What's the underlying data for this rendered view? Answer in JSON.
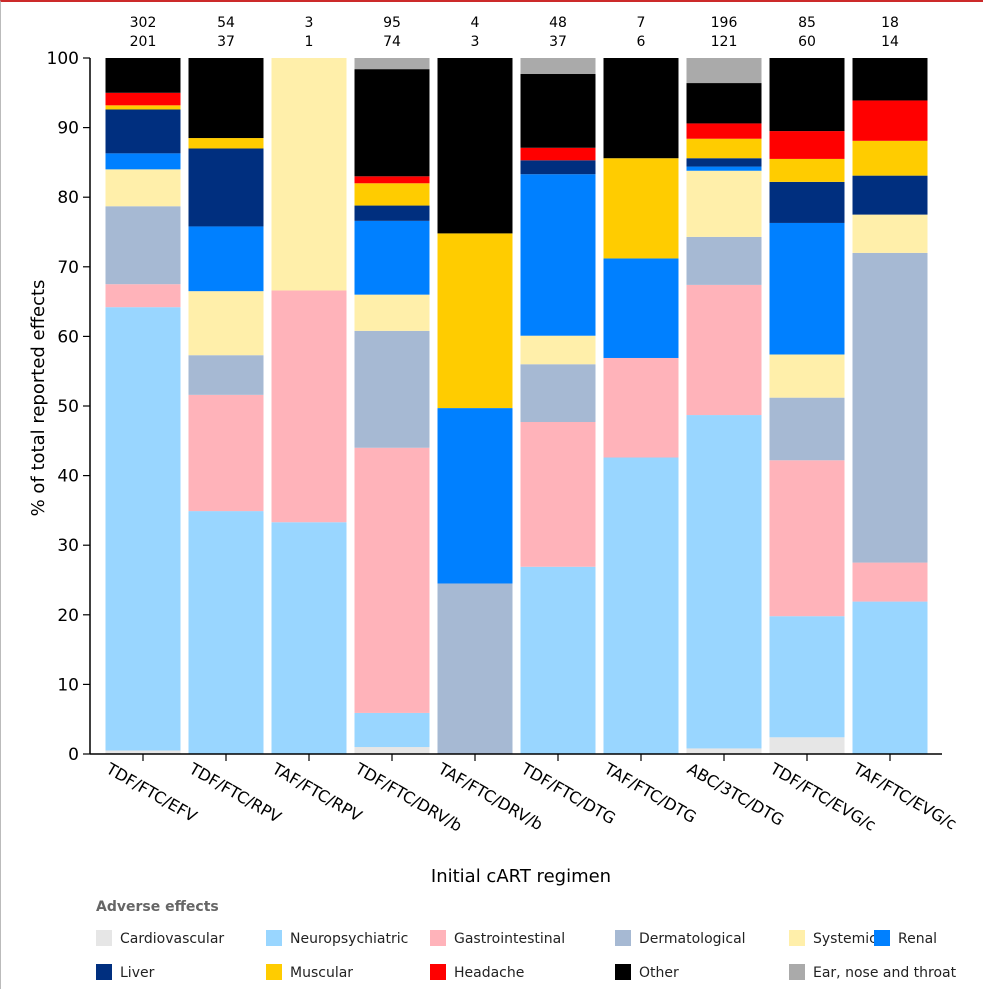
{
  "chart_data": {
    "type": "bar",
    "stacked": true,
    "xlabel": "Initial cART regimen",
    "ylabel": "% of total reported effects",
    "ylim": [
      0,
      100
    ],
    "yticks": [
      0,
      10,
      20,
      30,
      40,
      50,
      60,
      70,
      80,
      90,
      100
    ],
    "categories": [
      "TDF/FTC/EFV",
      "TDF/FTC/RPV",
      "TAF/FTC/RPV",
      "TDF/FTC/DRV/b",
      "TAF/FTC/DRV/b",
      "TDF/FTC/DTG",
      "TAF/FTC/DTG",
      "ABC/3TC/DTG",
      "TDF/FTC/EVG/c",
      "TAF/FTC/EVG/c"
    ],
    "counts_top": [
      "302",
      "54",
      "3",
      "95",
      "4",
      "48",
      "7",
      "196",
      "85",
      "18"
    ],
    "counts_bottom": [
      "201",
      "37",
      "1",
      "74",
      "3",
      "37",
      "6",
      "121",
      "60",
      "14"
    ],
    "legend_title": "Adverse effects",
    "legend_placement": "bottom",
    "grid": false,
    "series": [
      {
        "name": "Cardiovascular",
        "color": "#e6e6e6",
        "values": [
          0.5,
          0,
          0,
          1.0,
          0,
          0,
          0,
          0.8,
          2.4,
          0
        ]
      },
      {
        "name": "Neuropsychiatric",
        "color": "#99d6ff",
        "values": [
          63.7,
          34.9,
          33.3,
          4.9,
          0,
          26.9,
          42.6,
          47.9,
          17.4,
          21.9
        ]
      },
      {
        "name": "Gastrointestinal",
        "color": "#ffb3ba",
        "values": [
          3.3,
          16.7,
          33.3,
          38.1,
          0,
          20.8,
          14.3,
          18.7,
          22.4,
          5.6
        ]
      },
      {
        "name": "Dermatological",
        "color": "#a6b9d3",
        "values": [
          11.2,
          5.7,
          0,
          16.8,
          24.5,
          8.3,
          0,
          6.9,
          9.0,
          44.5
        ]
      },
      {
        "name": "Systemic",
        "color": "#ffefaa",
        "values": [
          5.3,
          9.2,
          33.4,
          5.2,
          0,
          4.1,
          0,
          9.5,
          6.2,
          5.5
        ]
      },
      {
        "name": "Renal",
        "color": "#0080ff",
        "values": [
          2.3,
          9.3,
          0,
          10.6,
          25.2,
          23.2,
          14.3,
          0.6,
          18.9,
          0
        ]
      },
      {
        "name": "Liver",
        "color": "#002f7f",
        "values": [
          6.3,
          11.2,
          0,
          2.2,
          0,
          2.0,
          0,
          1.2,
          5.9,
          5.6
        ]
      },
      {
        "name": "Muscular",
        "color": "#ffcc00",
        "values": [
          0.6,
          1.5,
          0,
          3.2,
          25.1,
          0,
          14.4,
          2.8,
          3.3,
          5.0
        ]
      },
      {
        "name": "Headache",
        "color": "#ff0000",
        "values": [
          1.8,
          0,
          0,
          1.0,
          0,
          1.8,
          0,
          2.2,
          4.0,
          5.8
        ]
      },
      {
        "name": "Other",
        "color": "#000000",
        "values": [
          5.0,
          11.5,
          0,
          15.4,
          25.2,
          10.6,
          14.4,
          5.8,
          10.5,
          6.1
        ]
      },
      {
        "name": "Ear, nose and throat",
        "color": "#aaaaaa",
        "values": [
          0,
          0,
          0,
          1.6,
          0,
          2.3,
          0,
          3.6,
          0,
          0
        ]
      }
    ]
  }
}
